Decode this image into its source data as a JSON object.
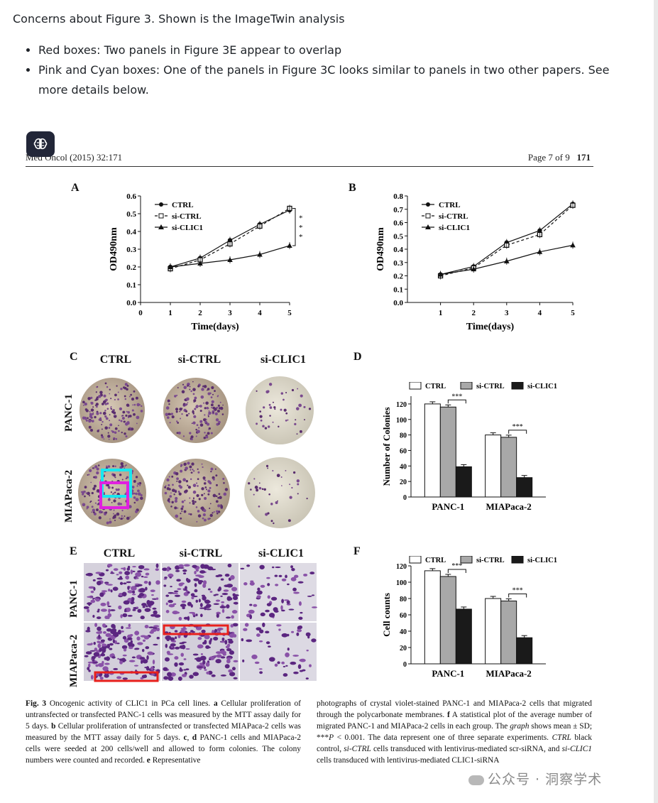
{
  "post": {
    "intro": "Concerns about Figure 3. Shown is the ImageTwin analysis",
    "bullets": [
      "Red boxes: Two panels in Figure 3E appear to overlap",
      "Pink and Cyan boxes: One of the panels in Figure 3C looks similar to panels in two other papers. See more details below."
    ]
  },
  "paper_header": {
    "left": "Med Oncol (2015) 32:171",
    "right_prefix": "Page 7 of 9",
    "right_num": "171"
  },
  "panels": {
    "a": "A",
    "b": "B",
    "c": "C",
    "d": "D",
    "e": "E",
    "f": "F"
  },
  "colony_grid": {
    "columns": [
      "CTRL",
      "si-CTRL",
      "si-CLIC1"
    ],
    "rows": [
      "PANC-1",
      "MIAPaca-2"
    ]
  },
  "migration_grid": {
    "columns": [
      "CTRL",
      "si-CTRL",
      "si-CLIC1"
    ],
    "rows": [
      "PANC-1",
      "MIAPaca-2"
    ]
  },
  "highlight_colors": {
    "red": "#e8201c",
    "pink": "#e020e0",
    "cyan": "#19e8f0"
  },
  "chart_data": [
    {
      "id": "A",
      "type": "line",
      "xlabel": "Time(days)",
      "ylabel": "OD490nm",
      "x": [
        1,
        2,
        3,
        4,
        5
      ],
      "xticks": [
        "0",
        "1",
        "2",
        "3",
        "4",
        "5"
      ],
      "xlim": [
        0,
        5
      ],
      "ylim": [
        0,
        0.6
      ],
      "yticks": [
        "0.0",
        "0.1",
        "0.2",
        "0.3",
        "0.4",
        "0.5",
        "0.6"
      ],
      "series": [
        {
          "name": "CTRL",
          "marker": "circle",
          "values": [
            0.2,
            0.25,
            0.35,
            0.44,
            0.52
          ]
        },
        {
          "name": "si-CTRL",
          "marker": "square",
          "values": [
            0.19,
            0.24,
            0.33,
            0.43,
            0.53
          ]
        },
        {
          "name": "si-CLIC1",
          "marker": "triangle",
          "values": [
            0.2,
            0.22,
            0.24,
            0.27,
            0.32
          ]
        }
      ],
      "annotations": [
        "*",
        "*",
        "*"
      ],
      "legend": "top-left"
    },
    {
      "id": "B",
      "type": "line",
      "xlabel": "Time(days)",
      "ylabel": "OD490nm",
      "x": [
        1,
        2,
        3,
        4,
        5
      ],
      "xticks": [
        "1",
        "2",
        "3",
        "4",
        "5"
      ],
      "xlim": [
        0,
        5
      ],
      "ylim": [
        0,
        0.8
      ],
      "yticks": [
        "0.0",
        "0.1",
        "0.2",
        "0.3",
        "0.4",
        "0.5",
        "0.6",
        "0.7",
        "0.8"
      ],
      "series": [
        {
          "name": "CTRL",
          "marker": "circle",
          "values": [
            0.21,
            0.27,
            0.45,
            0.54,
            0.74
          ]
        },
        {
          "name": "si-CTRL",
          "marker": "square",
          "values": [
            0.2,
            0.26,
            0.43,
            0.51,
            0.73
          ]
        },
        {
          "name": "si-CLIC1",
          "marker": "triangle",
          "values": [
            0.21,
            0.25,
            0.31,
            0.38,
            0.43
          ]
        }
      ],
      "annotations": [
        "*",
        "*",
        "*"
      ],
      "legend": "top-left"
    },
    {
      "id": "D",
      "type": "bar",
      "ylabel": "Number of Colonies",
      "categories": [
        "PANC-1",
        "MIAPaca-2"
      ],
      "ylim": [
        0,
        130
      ],
      "yticks": [
        "0",
        "20",
        "40",
        "60",
        "80",
        "100",
        "120"
      ],
      "series": [
        {
          "name": "CTRL",
          "values": [
            120,
            80
          ]
        },
        {
          "name": "si-CTRL",
          "values": [
            116,
            77
          ]
        },
        {
          "name": "si-CLIC1",
          "values": [
            39,
            25
          ]
        }
      ],
      "annotations": [
        "***",
        "***"
      ],
      "legend": "top"
    },
    {
      "id": "F",
      "type": "bar",
      "ylabel": "Cell counts",
      "categories": [
        "PANC-1",
        "MIAPaca-2"
      ],
      "ylim": [
        0,
        120
      ],
      "yticks": [
        "0",
        "20",
        "40",
        "60",
        "80",
        "100",
        "120"
      ],
      "series": [
        {
          "name": "CTRL",
          "values": [
            114,
            80
          ]
        },
        {
          "name": "si-CTRL",
          "values": [
            107,
            77
          ]
        },
        {
          "name": "si-CLIC1",
          "values": [
            67,
            32
          ]
        }
      ],
      "annotations": [
        "***",
        "***"
      ],
      "legend": "top"
    }
  ],
  "caption": {
    "left_html": "<b>Fig. 3</b> Oncogenic activity of CLIC1 in PCa cell lines. <b>a</b> Cellular proliferation of untransfected or transfected PANC-1 cells was measured by the MTT assay daily for 5 days. <b>b</b> Cellular proliferation of untransfected or transfected MIAPaca-2 cells was measured by the MTT assay daily for 5 days. <b>c</b>, <b>d</b> PANC-1 cells and MIAPaca-2 cells were seeded at 200 cells/well and allowed to form colonies. The colony numbers were counted and recorded. <b>e</b> Representative",
    "right_html": "photographs of crystal violet-stained PANC-1 and MIAPaca-2 cells that migrated through the polycarbonate membranes. <b>f</b> A statistical plot of the average number of migrated PANC-1 and MIAPaca-2 cells in each group. The <i>graph</i> shows mean ± SD; ***<i>P</i> &lt; 0.001. The data represent one of three separate experiments. <i>CTRL</i> black control, <i>si-CTRL</i> cells transduced with lentivirus-mediated scr-siRNA, and <i>si-CLIC1</i> cells transduced with lentivirus-mediated CLIC1-siRNA"
  },
  "watermark": "公众号 · 洞察学术",
  "brain_icon": "brain-icon"
}
